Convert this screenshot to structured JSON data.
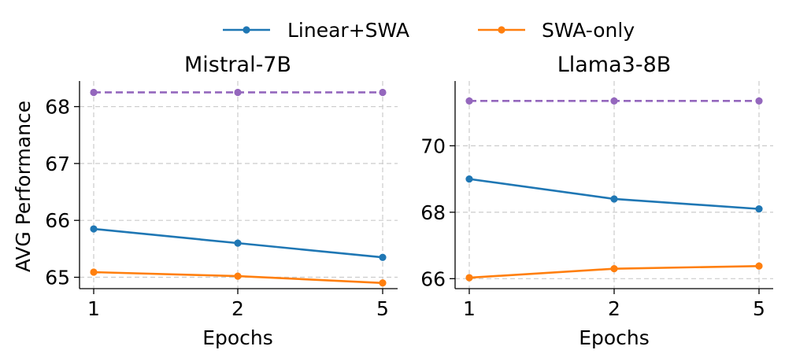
{
  "legend": [
    {
      "label": "Linear+SWA",
      "color": "#1f77b4"
    },
    {
      "label": "SWA-only",
      "color": "#ff7f0e"
    }
  ],
  "reference_color": "#9467bd",
  "chart_data": [
    {
      "type": "line",
      "title": "Mistral-7B",
      "xlabel": "Epochs",
      "ylabel": "AVG Performance",
      "categories": [
        "1",
        "2",
        "5"
      ],
      "ylim": [
        64.8,
        68.45
      ],
      "yticks": [
        65,
        66,
        67,
        68
      ],
      "grid": true,
      "series": [
        {
          "name": "Linear+SWA",
          "color": "#1f77b4",
          "values": [
            65.85,
            65.6,
            65.35
          ]
        },
        {
          "name": "SWA-only",
          "color": "#ff7f0e",
          "values": [
            65.09,
            65.02,
            64.9
          ]
        },
        {
          "name": "reference",
          "color": "#9467bd",
          "dashed": true,
          "values": [
            68.25,
            68.25,
            68.25
          ]
        }
      ]
    },
    {
      "type": "line",
      "title": "Llama3-8B",
      "xlabel": "Epochs",
      "ylabel": "",
      "categories": [
        "1",
        "2",
        "5"
      ],
      "ylim": [
        65.7,
        71.95
      ],
      "yticks": [
        66,
        68,
        70
      ],
      "grid": true,
      "series": [
        {
          "name": "Linear+SWA",
          "color": "#1f77b4",
          "values": [
            69.0,
            68.4,
            68.1
          ]
        },
        {
          "name": "SWA-only",
          "color": "#ff7f0e",
          "values": [
            66.03,
            66.3,
            66.38
          ]
        },
        {
          "name": "reference",
          "color": "#9467bd",
          "dashed": true,
          "values": [
            71.35,
            71.35,
            71.35
          ]
        }
      ]
    }
  ]
}
